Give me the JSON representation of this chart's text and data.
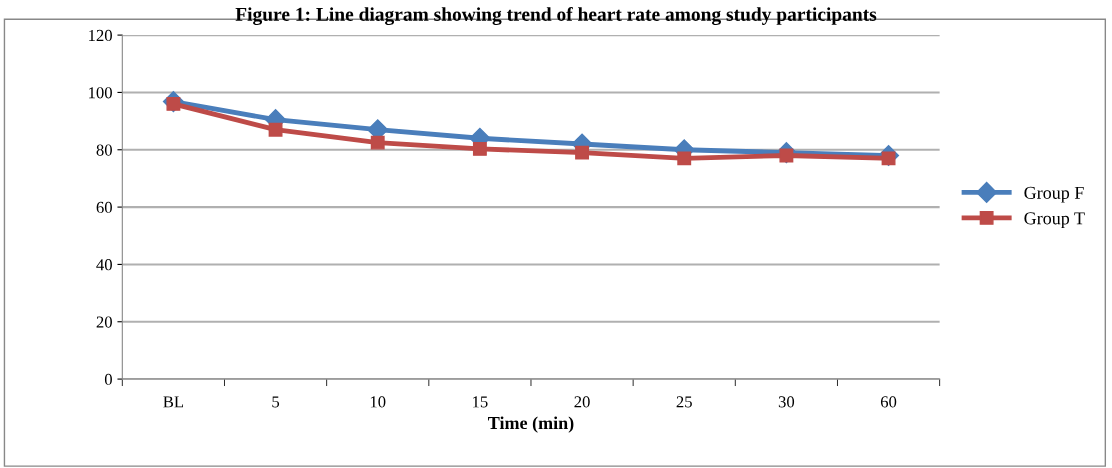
{
  "chart_data": {
    "type": "line",
    "title": "Figure 1: Line diagram showing trend of heart rate among study participants",
    "xlabel": "Time (min)",
    "categories": [
      "BL",
      "5",
      "10",
      "15",
      "20",
      "25",
      "30",
      "60"
    ],
    "series": [
      {
        "name": "Group F",
        "color": "#4a7ebb",
        "marker": "diamond",
        "values": [
          96.8,
          90.5,
          87,
          84,
          82,
          80,
          79,
          78
        ]
      },
      {
        "name": "Group T",
        "color": "#be4b48",
        "marker": "square",
        "values": [
          96,
          87,
          82.5,
          80.3,
          79,
          77,
          78,
          77
        ]
      }
    ],
    "ylim": [
      0,
      120
    ],
    "yticks": [
      0,
      20,
      40,
      60,
      80,
      100,
      120
    ],
    "grid": "y",
    "legend": "right",
    "line_style": "solid"
  }
}
